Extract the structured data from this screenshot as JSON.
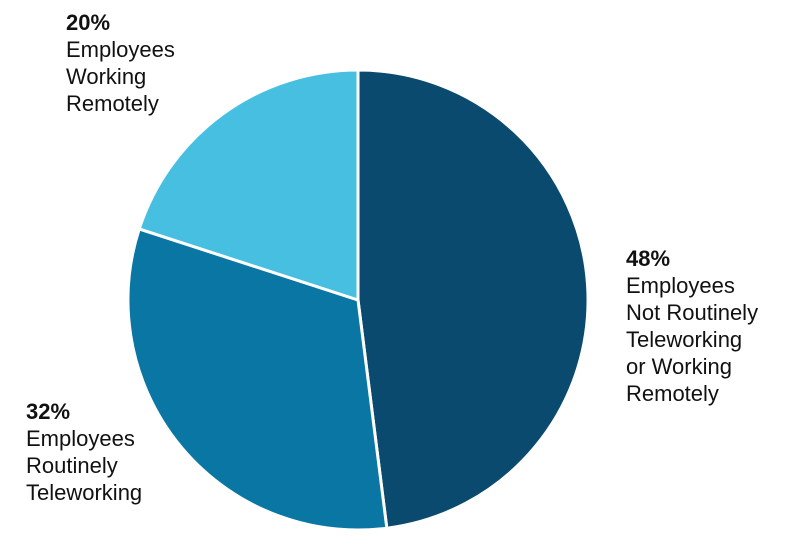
{
  "chart_data": {
    "type": "pie",
    "title": "",
    "slices": [
      {
        "key": "not",
        "value": 48,
        "pct_label": "48%",
        "lines": [
          "Employees",
          "Not Routinely",
          "Teleworking",
          "or Working",
          "Remotely"
        ],
        "color": "#0b4a6f"
      },
      {
        "key": "routine",
        "value": 32,
        "pct_label": "32%",
        "lines": [
          "Employees",
          "Routinely",
          "Teleworking"
        ],
        "color": "#0a76a3"
      },
      {
        "key": "remote",
        "value": 20,
        "pct_label": "20%",
        "lines": [
          "Employees",
          "Working",
          "Remotely"
        ],
        "color": "#47bfe0"
      }
    ],
    "start_angle_deg": 0,
    "direction": "clockwise",
    "slice_border_color": "#ffffff",
    "legend": "none"
  }
}
